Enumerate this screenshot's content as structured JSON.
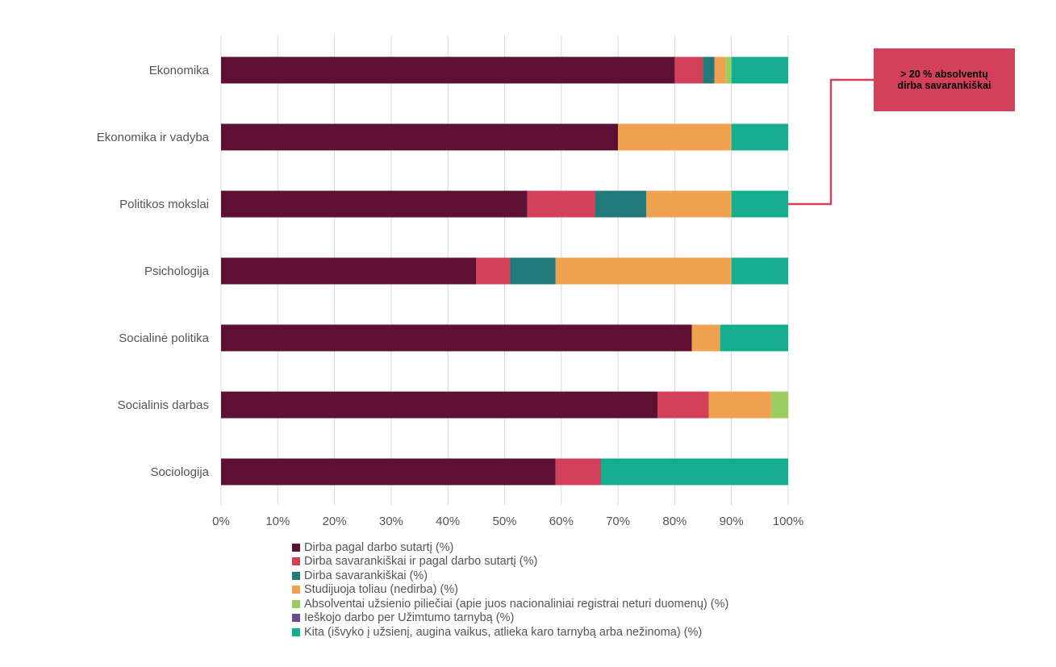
{
  "chart_data": {
    "type": "bar",
    "orientation": "horizontal",
    "stacked": true,
    "categories": [
      "Ekonomika",
      "Ekonomika ir vadyba",
      "Politikos mokslai",
      "Psichologija",
      "Socialinė politika",
      "Socialinis darbas",
      "Sociologija"
    ],
    "series": [
      {
        "name": "Dirba pagal darbo sutartį (%)",
        "color": "#5e1034",
        "values": [
          80,
          70,
          54,
          45,
          83,
          77,
          59
        ]
      },
      {
        "name": "Dirba savarankiškai ir pagal darbo sutartį (%)",
        "color": "#d2405a",
        "values": [
          5,
          0,
          12,
          6,
          0,
          9,
          8
        ]
      },
      {
        "name": "Dirba savarankiškai (%)",
        "color": "#217a79",
        "values": [
          2,
          0,
          9,
          8,
          0,
          0,
          0
        ]
      },
      {
        "name": "Studijuoja toliau (nedirba) (%)",
        "color": "#f0a150",
        "values": [
          2,
          20,
          15,
          31,
          5,
          11,
          0
        ]
      },
      {
        "name": "Absolventai užsienio piliečiai (apie juos nacionaliniai registrai neturi duomenų) (%)",
        "color": "#9ccb62",
        "values": [
          1,
          0,
          0,
          0,
          0,
          3,
          0
        ]
      },
      {
        "name": "Ieškojo darbo per Užimtumo tarnybą (%)",
        "color": "#6b4c8a",
        "values": [
          0,
          0,
          0,
          0,
          0,
          0,
          0
        ]
      },
      {
        "name": "Kita (išvyko į užsienį, augina vaikus, atlieka karo tarnybą arba nežinoma) (%)",
        "color": "#14ae8f",
        "values": [
          10,
          10,
          10,
          10,
          12,
          0,
          33
        ]
      }
    ],
    "x_ticks": [
      "0%",
      "10%",
      "20%",
      "30%",
      "40%",
      "50%",
      "60%",
      "70%",
      "80%",
      "90%",
      "100%"
    ],
    "xlim": [
      0,
      100
    ],
    "grid": "vertical",
    "legend_position": "bottom",
    "annotation": {
      "text_line1": "> 20 % absolventų",
      "text_line2": "dirba savarankiškai",
      "target_category": "Politikos mokslai",
      "color": "#d2405a"
    }
  }
}
